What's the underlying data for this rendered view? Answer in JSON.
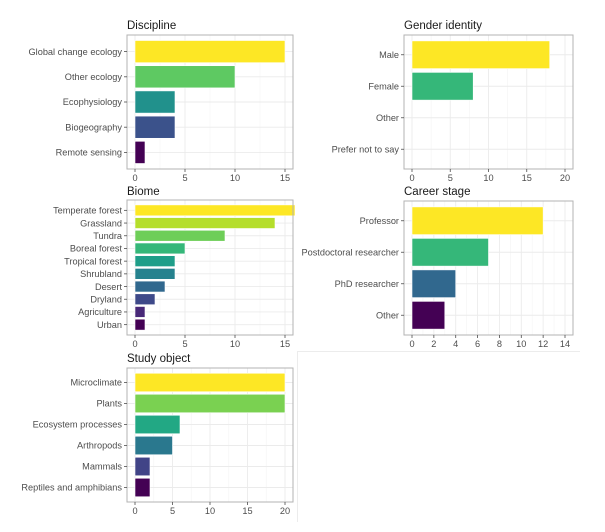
{
  "chart_data": [
    {
      "id": "discipline",
      "type": "bar",
      "orientation": "horizontal",
      "title": "Discipline",
      "xlabel": "",
      "ylabel": "",
      "categories": [
        "Global change ecology",
        "Other ecology",
        "Ecophysiology",
        "Biogeography",
        "Remote sensing"
      ],
      "values": [
        15,
        10,
        4,
        4,
        1
      ],
      "colors": [
        "#FDE725",
        "#5EC962",
        "#21918C",
        "#3B528B",
        "#440154"
      ],
      "xticks": [
        0,
        5,
        10,
        15
      ],
      "xlim": [
        0,
        15.8
      ],
      "grid": true,
      "legend": "none"
    },
    {
      "id": "gender",
      "type": "bar",
      "orientation": "horizontal",
      "title": "Gender identity",
      "xlabel": "",
      "ylabel": "",
      "categories": [
        "Male",
        "Female",
        "Other",
        "Prefer not to say"
      ],
      "values": [
        18,
        8,
        0,
        0
      ],
      "colors": [
        "#FDE725",
        "#35B779",
        "#31688E",
        "#440154"
      ],
      "xticks": [
        0,
        5,
        10,
        15,
        20
      ],
      "xlim": [
        0,
        20.4
      ],
      "grid": true,
      "legend": "none"
    },
    {
      "id": "biome",
      "type": "bar",
      "orientation": "horizontal",
      "title": "Biome",
      "xlabel": "",
      "ylabel": "",
      "categories": [
        "Temperate forest",
        "Grassland",
        "Tundra",
        "Boreal forest",
        "Tropical forest",
        "Shrubland",
        "Desert",
        "Dryland",
        "Agriculture",
        "Urban"
      ],
      "values": [
        16,
        14,
        9,
        5,
        4,
        4,
        3,
        2,
        1,
        1
      ],
      "colors": [
        "#FDE725",
        "#B5DE2B",
        "#6ECE58",
        "#35B779",
        "#1F9E89",
        "#26828E",
        "#31688E",
        "#3E4989",
        "#482878",
        "#440154"
      ],
      "xticks": [
        0,
        5,
        10,
        15
      ],
      "xlim": [
        0,
        16.8
      ],
      "grid": true,
      "legend": "none"
    },
    {
      "id": "career",
      "type": "bar",
      "orientation": "horizontal",
      "title": "Career stage",
      "xlabel": "",
      "ylabel": "",
      "categories": [
        "Professor",
        "Postdoctoral researcher",
        "PhD researcher",
        "Other"
      ],
      "values": [
        12,
        7,
        4,
        3
      ],
      "colors": [
        "#FDE725",
        "#35B779",
        "#31688E",
        "#440154"
      ],
      "xticks": [
        0,
        2,
        4,
        6,
        8,
        10,
        12,
        14
      ],
      "xlim": [
        0,
        14.3
      ],
      "grid": true,
      "legend": "none"
    },
    {
      "id": "study_object",
      "type": "bar",
      "orientation": "horizontal",
      "title": "Study object",
      "xlabel": "",
      "ylabel": "",
      "categories": [
        "Microclimate",
        "Plants",
        "Ecosystem processes",
        "Arthropods",
        "Mammals",
        "Reptiles and amphibians"
      ],
      "values": [
        20,
        20,
        6,
        5,
        2,
        2
      ],
      "colors": [
        "#FDE725",
        "#7AD151",
        "#22A884",
        "#2A788E",
        "#414487",
        "#440154"
      ],
      "xticks": [
        0,
        5,
        10,
        15,
        20
      ],
      "xlim": [
        0,
        20.8
      ],
      "grid": true,
      "legend": "none"
    }
  ]
}
